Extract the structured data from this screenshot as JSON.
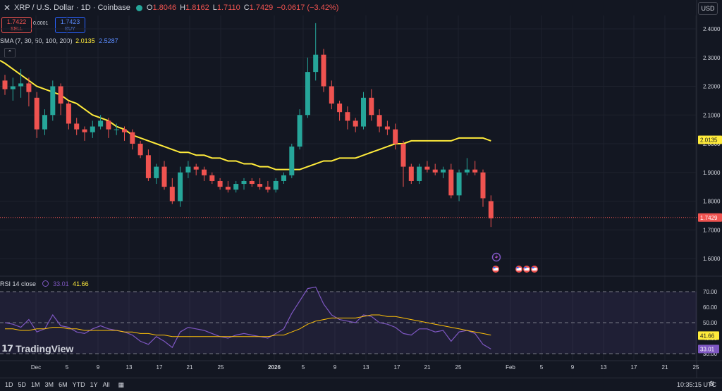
{
  "header": {
    "close_icon": "x-icon",
    "title": "XRP / U.S. Dollar · 1D · Coinbase",
    "status_color": "#26a69a",
    "open_key": "O",
    "open": "1.8046",
    "high_key": "H",
    "high": "1.8162",
    "low_key": "L",
    "low": "1.7110",
    "close_key": "C",
    "close": "1.7429",
    "change": "−0.0617 (−3.42%)",
    "currency": "USD"
  },
  "trade": {
    "sell_price": "1.7422",
    "sell_label": "SELL",
    "spread": "0.0001",
    "buy_price": "1.7423",
    "buy_label": "BUY"
  },
  "indicators": {
    "sma_label": "SMA (7, 30, 50, 100, 200)",
    "sma_val1": "2.0135",
    "sma_val2": "2.5287",
    "collapse_icon": "chevron-up-icon",
    "rsi_label": "RSI 14 close",
    "rsi_val1": "33.01",
    "rsi_val2": "41.66"
  },
  "price_axis": [
    "2.4000",
    "2.3000",
    "2.2000",
    "2.1000",
    "2.0000",
    "1.9000",
    "1.8000",
    "1.7000",
    "1.6000"
  ],
  "price_tags": {
    "sma": "2.0135",
    "last": "1.7429"
  },
  "rsi_axis": [
    "70.00",
    "60.00",
    "50.00",
    "40.00",
    "30.00"
  ],
  "rsi_tags": {
    "ma": "41.66",
    "rsi": "33.01"
  },
  "time_axis": [
    "Dec",
    "5",
    "9",
    "13",
    "17",
    "21",
    "25",
    "2026",
    "5",
    "9",
    "13",
    "17",
    "21",
    "25",
    "Feb",
    "5",
    "9",
    "13",
    "17",
    "21",
    "25"
  ],
  "logo": {
    "text": "TradingView"
  },
  "bottom": {
    "ranges": [
      "1D",
      "5D",
      "1M",
      "3M",
      "6M",
      "YTD",
      "1Y",
      "All"
    ],
    "calendar_icon": "calendar-range-icon",
    "time": "10:35:15 UTC",
    "gear_icon": "gear-icon"
  },
  "colors": {
    "up": "#26a69a",
    "down": "#ef5350",
    "sma": "#ffeb3b",
    "rsi": "#7e57c2",
    "rsi_ma": "#ffc107"
  },
  "chart_data": {
    "type": "candlestick",
    "ylim": [
      1.55,
      2.45
    ],
    "ohlc": [
      [
        2.22,
        2.24,
        2.17,
        2.19
      ],
      [
        2.19,
        2.23,
        2.15,
        2.2
      ],
      [
        2.2,
        2.26,
        2.16,
        2.21
      ],
      [
        2.21,
        2.23,
        2.13,
        2.18
      ],
      [
        2.16,
        2.18,
        2.02,
        2.05
      ],
      [
        2.05,
        2.12,
        2.03,
        2.1
      ],
      [
        2.1,
        2.22,
        2.08,
        2.2
      ],
      [
        2.2,
        2.21,
        2.1,
        2.14
      ],
      [
        2.14,
        2.15,
        2.05,
        2.07
      ],
      [
        2.07,
        2.09,
        2.03,
        2.05
      ],
      [
        2.05,
        2.06,
        2.01,
        2.04
      ],
      [
        2.04,
        2.08,
        2.02,
        2.06
      ],
      [
        2.06,
        2.1,
        2.05,
        2.08
      ],
      [
        2.08,
        2.09,
        2.02,
        2.05
      ],
      [
        2.05,
        2.07,
        2.03,
        2.05
      ],
      [
        2.05,
        2.06,
        2.01,
        2.04
      ],
      [
        2.04,
        2.05,
        1.98,
        2.0
      ],
      [
        2.0,
        2.01,
        1.95,
        1.96
      ],
      [
        1.96,
        1.98,
        1.87,
        1.88
      ],
      [
        1.88,
        1.93,
        1.86,
        1.92
      ],
      [
        1.92,
        1.94,
        1.84,
        1.85
      ],
      [
        1.85,
        1.88,
        1.79,
        1.8
      ],
      [
        1.8,
        1.92,
        1.78,
        1.9
      ],
      [
        1.9,
        1.94,
        1.88,
        1.92
      ],
      [
        1.92,
        1.93,
        1.89,
        1.91
      ],
      [
        1.91,
        1.92,
        1.87,
        1.89
      ],
      [
        1.89,
        1.9,
        1.86,
        1.87
      ],
      [
        1.87,
        1.88,
        1.84,
        1.85
      ],
      [
        1.85,
        1.87,
        1.83,
        1.84
      ],
      [
        1.84,
        1.87,
        1.83,
        1.86
      ],
      [
        1.86,
        1.88,
        1.84,
        1.87
      ],
      [
        1.87,
        1.88,
        1.85,
        1.86
      ],
      [
        1.86,
        1.88,
        1.84,
        1.85
      ],
      [
        1.85,
        1.87,
        1.83,
        1.84
      ],
      [
        1.84,
        1.88,
        1.83,
        1.87
      ],
      [
        1.87,
        1.9,
        1.86,
        1.89
      ],
      [
        1.89,
        2.0,
        1.88,
        1.99
      ],
      [
        1.99,
        2.12,
        1.98,
        2.1
      ],
      [
        2.1,
        2.3,
        2.09,
        2.25
      ],
      [
        2.25,
        2.42,
        2.22,
        2.31
      ],
      [
        2.31,
        2.33,
        2.18,
        2.2
      ],
      [
        2.2,
        2.22,
        2.12,
        2.14
      ],
      [
        2.14,
        2.15,
        2.08,
        2.11
      ],
      [
        2.11,
        2.13,
        2.05,
        2.08
      ],
      [
        2.08,
        2.09,
        2.04,
        2.06
      ],
      [
        2.06,
        2.18,
        2.05,
        2.16
      ],
      [
        2.16,
        2.19,
        2.08,
        2.1
      ],
      [
        2.1,
        2.12,
        2.04,
        2.06
      ],
      [
        2.06,
        2.08,
        2.03,
        2.05
      ],
      [
        2.05,
        2.07,
        1.98,
        2.0
      ],
      [
        2.0,
        2.01,
        1.85,
        1.92
      ],
      [
        1.92,
        1.93,
        1.86,
        1.87
      ],
      [
        1.87,
        1.93,
        1.86,
        1.92
      ],
      [
        1.92,
        1.94,
        1.9,
        1.91
      ],
      [
        1.91,
        1.93,
        1.89,
        1.9
      ],
      [
        1.9,
        1.92,
        1.88,
        1.91
      ],
      [
        1.91,
        1.93,
        1.81,
        1.82
      ],
      [
        1.82,
        1.91,
        1.8,
        1.9
      ],
      [
        1.9,
        1.95,
        1.89,
        1.91
      ],
      [
        1.91,
        1.94,
        1.89,
        1.9
      ],
      [
        1.9,
        1.91,
        1.78,
        1.81
      ],
      [
        1.8,
        1.82,
        1.71,
        1.74
      ]
    ],
    "sma": [
      2.28,
      2.26,
      2.24,
      2.22,
      2.2,
      2.19,
      2.18,
      2.17,
      2.15,
      2.14,
      2.12,
      2.1,
      2.09,
      2.08,
      2.06,
      2.05,
      2.03,
      2.02,
      2.01,
      2.0,
      1.99,
      1.98,
      1.97,
      1.97,
      1.96,
      1.96,
      1.95,
      1.95,
      1.94,
      1.94,
      1.93,
      1.93,
      1.92,
      1.92,
      1.91,
      1.91,
      1.91,
      1.91,
      1.92,
      1.93,
      1.94,
      1.94,
      1.95,
      1.95,
      1.95,
      1.96,
      1.97,
      1.98,
      1.99,
      2.0,
      2.0,
      2.01,
      2.01,
      2.01,
      2.01,
      2.01,
      2.01,
      2.02,
      2.02,
      2.02,
      2.02,
      2.01
    ],
    "rsi": [
      50,
      49,
      47,
      52,
      44,
      46,
      55,
      48,
      47,
      44,
      43,
      46,
      48,
      46,
      45,
      44,
      42,
      38,
      36,
      41,
      38,
      34,
      44,
      47,
      46,
      45,
      43,
      41,
      40,
      42,
      43,
      42,
      41,
      40,
      43,
      46,
      56,
      64,
      72,
      73,
      62,
      55,
      52,
      51,
      50,
      55,
      54,
      50,
      49,
      47,
      43,
      42,
      46,
      46,
      44,
      45,
      38,
      44,
      45,
      43,
      36,
      33
    ],
    "rsi_ma": [
      46,
      46,
      45,
      45,
      46,
      46,
      47,
      47,
      46,
      46,
      45,
      45,
      45,
      45,
      45,
      44,
      44,
      43,
      43,
      42,
      42,
      41,
      41,
      41,
      41,
      41,
      41,
      41,
      41,
      41,
      41,
      41,
      41,
      41,
      42,
      42,
      44,
      46,
      49,
      51,
      52,
      53,
      53,
      53,
      53,
      54,
      55,
      55,
      54,
      54,
      53,
      52,
      51,
      50,
      49,
      48,
      47,
      46,
      45,
      44,
      43,
      42
    ],
    "rsi_ylim": [
      25,
      75
    ]
  }
}
